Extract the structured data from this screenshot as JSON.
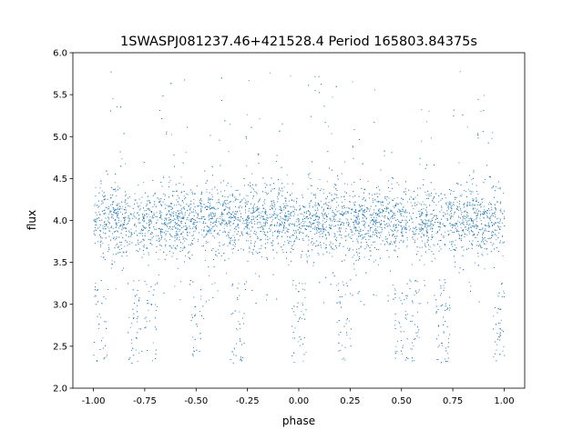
{
  "chart_data": {
    "type": "scatter",
    "title": "1SWASPJ081237.46+421528.4 Period 165803.84375s",
    "xlabel": "phase",
    "ylabel": "flux",
    "xlim": [
      -1.1,
      1.1
    ],
    "ylim": [
      2.0,
      6.0
    ],
    "xticks": [
      "-1.00",
      "-0.75",
      "-0.50",
      "-0.25",
      "0.00",
      "0.25",
      "0.50",
      "0.75",
      "1.00"
    ],
    "xtick_values": [
      -1.0,
      -0.75,
      -0.5,
      -0.25,
      0.0,
      0.25,
      0.5,
      0.75,
      1.0
    ],
    "yticks": [
      "2.0",
      "2.5",
      "3.0",
      "3.5",
      "4.0",
      "4.5",
      "5.0",
      "5.5",
      "6.0"
    ],
    "ytick_values": [
      2.0,
      2.5,
      3.0,
      3.5,
      4.0,
      4.5,
      5.0,
      5.5,
      6.0
    ],
    "grid": false,
    "color": "#1f77b4",
    "points_summary": {
      "x_range": [
        -1.0,
        1.0
      ],
      "typical_flux": 4.0,
      "flux_core_range": [
        3.6,
        4.5
      ],
      "flux_full_range": [
        2.15,
        5.85
      ],
      "low_flux_phases": [
        -0.97,
        -0.8,
        -0.72,
        -0.5,
        -0.3,
        0.0,
        0.22,
        0.5,
        0.55,
        0.7,
        0.98
      ]
    }
  }
}
